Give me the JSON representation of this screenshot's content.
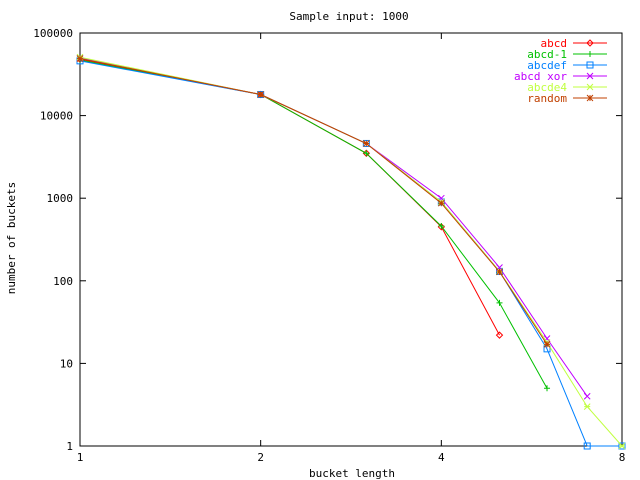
{
  "chart_data": {
    "type": "line",
    "title": "Sample input: 1000",
    "xlabel": "bucket length",
    "ylabel": "number of buckets",
    "x_scale": "log2",
    "y_scale": "log10",
    "xlim": [
      1,
      8
    ],
    "ylim": [
      1,
      100000
    ],
    "x_ticks": [
      1,
      2,
      4,
      8
    ],
    "x_tick_labels": [
      "1",
      "2",
      "4",
      "8"
    ],
    "y_ticks": [
      1,
      10,
      100,
      1000,
      10000,
      100000
    ],
    "y_tick_labels": [
      "1",
      "10",
      "100",
      "1000",
      "10000",
      "100000"
    ],
    "grid": false,
    "legend_position": "top-right",
    "series": [
      {
        "name": "abcd",
        "color": "#ff0000",
        "marker": "diamond",
        "x": [
          1,
          2,
          3,
          4,
          5
        ],
        "y": [
          48000,
          18000,
          3500,
          450,
          22
        ]
      },
      {
        "name": "abcd-1",
        "color": "#00c000",
        "marker": "plus",
        "x": [
          1,
          2,
          3,
          4,
          5,
          6
        ],
        "y": [
          47000,
          18000,
          3500,
          460,
          54,
          5
        ]
      },
      {
        "name": "abcdef",
        "color": "#0080ff",
        "marker": "square",
        "x": [
          1,
          2,
          3,
          4,
          5,
          6,
          7,
          8
        ],
        "y": [
          46000,
          18000,
          4600,
          900,
          130,
          15,
          1,
          1
        ]
      },
      {
        "name": "abcd xor",
        "color": "#c000ff",
        "marker": "x",
        "x": [
          1,
          2,
          3,
          4,
          5,
          6,
          7
        ],
        "y": [
          50000,
          18000,
          4600,
          1000,
          145,
          20,
          4
        ]
      },
      {
        "name": "abcde4",
        "color": "#c0ff40",
        "marker": "star",
        "x": [
          1,
          2,
          3,
          4,
          5,
          6,
          7,
          8
        ],
        "y": [
          51000,
          18000,
          4600,
          900,
          130,
          18,
          3,
          1
        ]
      },
      {
        "name": "random",
        "color": "#c04000",
        "marker": "asterisk",
        "x": [
          1,
          2,
          3,
          4,
          5,
          6
        ],
        "y": [
          49000,
          18000,
          4600,
          870,
          128,
          17
        ]
      }
    ]
  }
}
